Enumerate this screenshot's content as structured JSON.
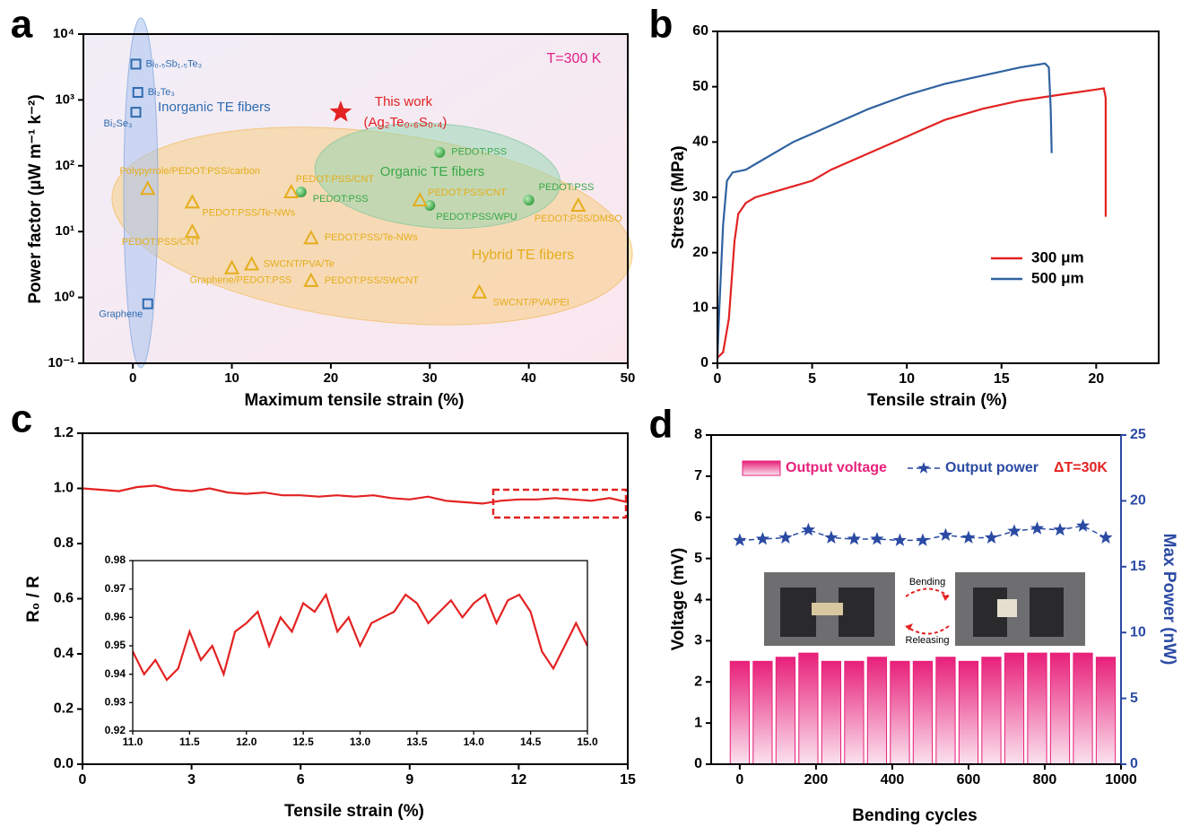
{
  "chart_data": [
    {
      "panel": "a",
      "type": "scatter",
      "xlabel": "Maximum tensile strain (%)",
      "ylabel": "Power factor (μW m⁻¹ k⁻²)",
      "annotation": "T=300 K",
      "xlim": [
        -5,
        50
      ],
      "ylim": [
        0.1,
        10000
      ],
      "ylog": true,
      "xticks": [
        0,
        10,
        20,
        30,
        40,
        50
      ],
      "yticks": [
        {
          "value": 0.1,
          "label": "10⁻¹"
        },
        {
          "value": 1,
          "label": "10⁰"
        },
        {
          "value": 10,
          "label": "10¹"
        },
        {
          "value": 100,
          "label": "10²"
        },
        {
          "value": 1000,
          "label": "10³"
        },
        {
          "value": 10000,
          "label": "10⁴"
        }
      ],
      "series": [
        {
          "name": "Inorganic TE fibers",
          "marker": "square",
          "color": "#2e6bb0",
          "x": [
            0.3,
            0.5,
            0.3,
            1.5
          ],
          "values": [
            3500,
            1300,
            650,
            0.8
          ],
          "labels": [
            "Bi₀.₅Sb₁.₅Te₃",
            "Bi₂Te₃",
            "Bi₂Se₃",
            "Graphene"
          ]
        },
        {
          "name": "Organic TE fibers",
          "marker": "circle",
          "color": "#3aa84a",
          "x": [
            31,
            17,
            30,
            40
          ],
          "values": [
            160,
            40,
            25,
            30
          ],
          "labels": [
            "PEDOT:PSS",
            "PEDOT:PSS",
            "PEDOT:PSS/WPU",
            "PEDOT:PSS"
          ]
        },
        {
          "name": "Hybrid TE fibers",
          "marker": "triangle",
          "color": "#e5ad1c",
          "x": [
            1.5,
            6,
            6,
            16,
            29,
            45,
            18,
            12,
            10,
            18,
            35
          ],
          "values": [
            45,
            28,
            10,
            40,
            30,
            25,
            8,
            3.2,
            2.8,
            1.8,
            1.2
          ],
          "labels": [
            "Polypyrrole/PEDOT:PSS/carbon",
            "PEDOT:PSS/Te-NWs",
            "PEDOT:PSS/CNT",
            "PEDOT:PSS/CNT",
            "PEDOT:PSS/CNT",
            "PEDOT:PSS/DMSO",
            "PEDOT:PSS/Te-NWs",
            "SWCNT/PVA/Te",
            "Graphene/PEDOT:PSS",
            "PEDOT:PSS/SWCNT",
            "SWCNT/PVA/PEI"
          ]
        },
        {
          "name": "This work",
          "marker": "star",
          "color": "#e32222",
          "x": [
            21
          ],
          "values": [
            650
          ],
          "labels": [
            "(Ag₂Te₀.₆S₀.₄)"
          ]
        }
      ]
    },
    {
      "panel": "b",
      "type": "line",
      "xlabel": "Tensile strain (%)",
      "ylabel": "Stress (MPa)",
      "legend": "lower right",
      "xlim": [
        0,
        23.3
      ],
      "ylim": [
        0,
        60
      ],
      "xticks": [
        0,
        5,
        10,
        15,
        20
      ],
      "yticks": [
        0,
        10,
        20,
        30,
        40,
        50,
        60
      ],
      "series": [
        {
          "name": "300 μm",
          "color": "#e32222",
          "x": [
            0,
            0.3,
            0.6,
            0.9,
            1.1,
            1.5,
            2,
            3,
            4,
            5,
            6,
            8,
            10,
            12,
            14,
            16,
            18,
            20,
            20.4,
            20.5,
            20.5
          ],
          "values": [
            1,
            2,
            8,
            22,
            27,
            29,
            30,
            31,
            32,
            33,
            35,
            38,
            41,
            44,
            46,
            47.5,
            48.5,
            49.5,
            49.7,
            48,
            26.5
          ]
        },
        {
          "name": "500 μm",
          "color": "#2f62a0",
          "x": [
            0,
            0.1,
            0.3,
            0.5,
            0.8,
            1.5,
            2,
            3,
            4,
            5,
            6,
            8,
            10,
            12,
            14,
            16,
            17.3,
            17.5,
            17.6,
            17.65
          ],
          "values": [
            1,
            10,
            25,
            33,
            34.5,
            35,
            36,
            38,
            40,
            41.5,
            43,
            46,
            48.5,
            50.5,
            52,
            53.5,
            54.2,
            53.5,
            46,
            38
          ]
        }
      ]
    },
    {
      "panel": "c",
      "type": "line",
      "xlabel": "Tensile strain (%)",
      "ylabel": "R₀ / R",
      "xlim": [
        0,
        15
      ],
      "ylim": [
        0,
        1.2
      ],
      "xticks": [
        0,
        3,
        6,
        9,
        12,
        15
      ],
      "yticks": [
        {
          "value": 0,
          "label": "0.0"
        },
        0.2,
        0.4,
        0.6,
        0.8,
        {
          "value": 1,
          "label": "1.0"
        },
        1.2
      ],
      "series": [
        {
          "color": "#e32222",
          "x": [
            0,
            0.5,
            1,
            1.5,
            2,
            2.5,
            3,
            3.5,
            4,
            4.5,
            5,
            5.5,
            6,
            6.5,
            7,
            7.5,
            8,
            8.5,
            9,
            9.5,
            10,
            10.5,
            11,
            11.5,
            12,
            12.5,
            13,
            13.5,
            14,
            14.5,
            15
          ],
          "values": [
            1.0,
            0.995,
            0.99,
            1.005,
            1.01,
            0.995,
            0.99,
            1.0,
            0.985,
            0.98,
            0.985,
            0.975,
            0.975,
            0.97,
            0.975,
            0.97,
            0.975,
            0.965,
            0.96,
            0.97,
            0.955,
            0.95,
            0.945,
            0.955,
            0.96,
            0.96,
            0.965,
            0.96,
            0.955,
            0.965,
            0.95
          ]
        }
      ]
    },
    {
      "type": "line",
      "xlim": [
        11,
        15
      ],
      "ylim": [
        0.92,
        0.98
      ],
      "xticks": [
        {
          "value": 11,
          "label": "11.0"
        },
        11.5,
        {
          "value": 12,
          "label": "12.0"
        },
        12.5,
        {
          "value": 13,
          "label": "13.0"
        },
        13.5,
        {
          "value": 14,
          "label": "14.0"
        },
        14.5,
        {
          "value": 15,
          "label": "15.0"
        }
      ],
      "yticks": [
        0.92,
        0.93,
        0.94,
        0.95,
        0.96,
        0.97,
        0.98
      ],
      "series": [
        {
          "color": "#e32222",
          "x": [
            11.0,
            11.1,
            11.2,
            11.3,
            11.4,
            11.5,
            11.6,
            11.7,
            11.8,
            11.9,
            12.0,
            12.1,
            12.2,
            12.3,
            12.4,
            12.5,
            12.6,
            12.7,
            12.8,
            12.9,
            13.0,
            13.1,
            13.2,
            13.3,
            13.4,
            13.5,
            13.6,
            13.7,
            13.8,
            13.9,
            14.0,
            14.1,
            14.2,
            14.3,
            14.4,
            14.5,
            14.6,
            14.7,
            14.8,
            14.9,
            15.0
          ],
          "values": [
            0.948,
            0.94,
            0.945,
            0.938,
            0.942,
            0.955,
            0.945,
            0.95,
            0.94,
            0.955,
            0.958,
            0.962,
            0.95,
            0.96,
            0.955,
            0.965,
            0.962,
            0.968,
            0.955,
            0.96,
            0.95,
            0.958,
            0.96,
            0.962,
            0.968,
            0.965,
            0.958,
            0.962,
            0.966,
            0.96,
            0.965,
            0.968,
            0.958,
            0.966,
            0.968,
            0.962,
            0.948,
            0.942,
            0.95,
            0.958,
            0.95
          ]
        }
      ]
    },
    {
      "panel": "d",
      "type": "bar",
      "xlabel": "Bending cycles",
      "ylabel": "Voltage (mV)",
      "y2label": "Max Power (nW)",
      "annotation": "ΔT=30K",
      "photo_labels": [
        "Bending",
        "Releasing"
      ],
      "xlim": [
        -75,
        1000
      ],
      "ylim": [
        0,
        8
      ],
      "y2lim": [
        0,
        25
      ],
      "xticks": [
        0,
        200,
        400,
        600,
        800,
        1000
      ],
      "yticks": [
        0,
        1,
        2,
        3,
        4,
        5,
        6,
        7,
        8
      ],
      "y2ticks": [
        0,
        5,
        10,
        15,
        20,
        25
      ],
      "x": [
        0,
        60,
        120,
        180,
        240,
        300,
        360,
        420,
        480,
        540,
        600,
        660,
        720,
        780,
        840,
        900,
        960
      ],
      "series": [
        {
          "name": "Output voltage",
          "color": "#e8207a",
          "values": [
            2.5,
            2.5,
            2.6,
            2.7,
            2.5,
            2.5,
            2.6,
            2.5,
            2.5,
            2.6,
            2.5,
            2.6,
            2.7,
            2.7,
            2.7,
            2.7,
            2.6
          ]
        },
        {
          "name": "Output power",
          "color": "#2b4aa3",
          "axis": "y2",
          "marker": "star",
          "values": [
            17,
            17.1,
            17.2,
            17.8,
            17.2,
            17.1,
            17.1,
            17,
            17,
            17.4,
            17.2,
            17.2,
            17.7,
            17.9,
            17.8,
            18.1,
            17.2
          ]
        }
      ]
    }
  ]
}
